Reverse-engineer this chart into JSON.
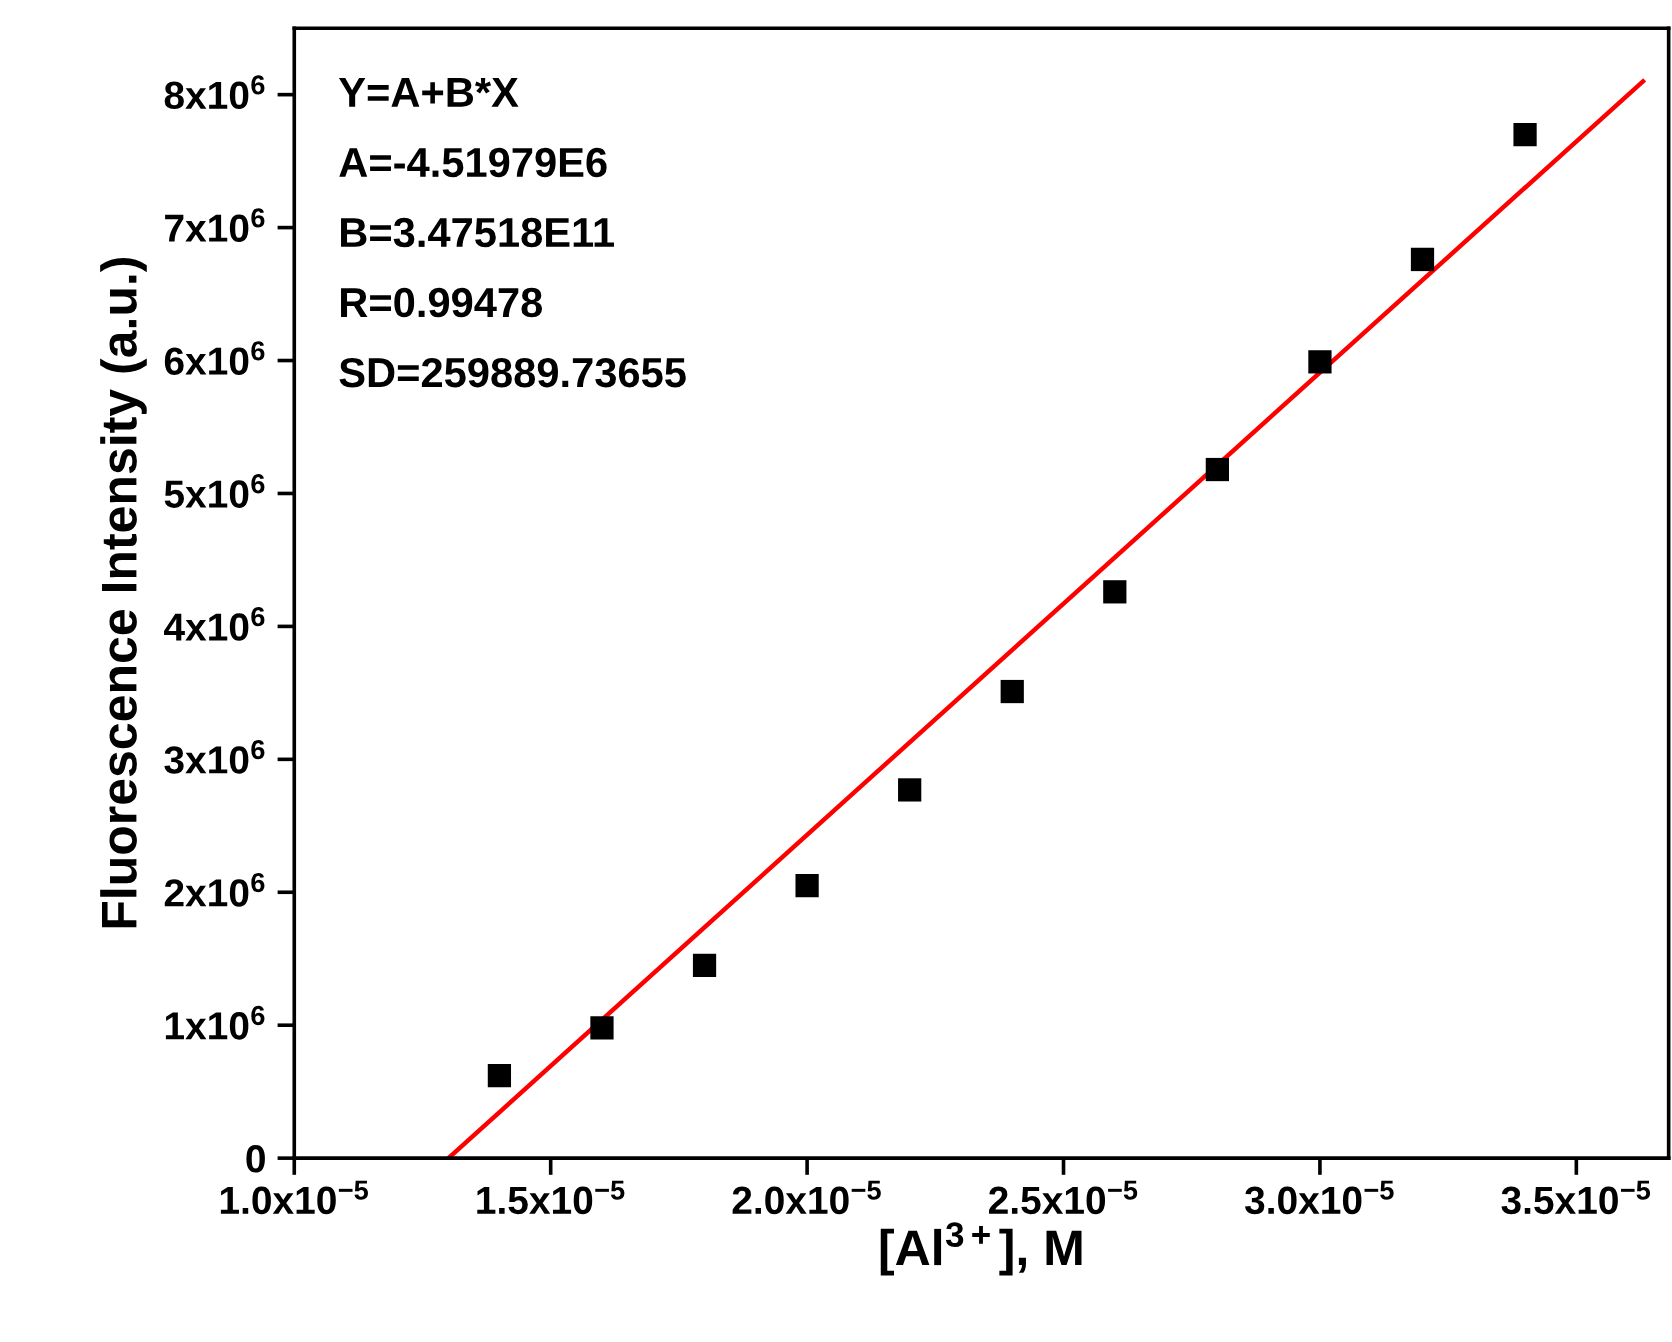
{
  "chart_data": {
    "type": "scatter",
    "xlabel": "[Al$^{3+}$], M",
    "ylabel": "Fluorescence Intensity (a.u.)",
    "x": [
      1.4e-05,
      1.6e-05,
      1.8e-05,
      2e-05,
      2.2e-05,
      2.4e-05,
      2.6e-05,
      2.8e-05,
      3e-05,
      3.2e-05,
      3.4e-05
    ],
    "series": [
      {
        "color": "#000000",
        "marker": "square",
        "values": [
          620000.0,
          980000.0,
          1450000.0,
          2050000.0,
          2770000.0,
          3510000.0,
          4260000.0,
          5180000.0,
          5990000.0,
          6760000.0,
          7700000.0
        ]
      },
      {
        "type": "line",
        "color": "#ff0000",
        "line_style": "solid",
        "marker": "none",
        "x": [
          1.3006e-05,
          3.63e-05
        ],
        "values": [
          0,
          8100000.0
        ]
      }
    ],
    "xlim": [
      1e-05,
      3.68e-05
    ],
    "ylim": [
      0,
      8500000.0
    ],
    "xticks": [
      {
        "value": 1e-05,
        "label": "1.0x10$^{−5}$"
      },
      {
        "value": 1.5e-05,
        "label": "1.5x10$^{−5}$"
      },
      {
        "value": 2e-05,
        "label": "2.0x10$^{−5}$"
      },
      {
        "value": 2.5e-05,
        "label": "2.5x10$^{−5}$"
      },
      {
        "value": 3e-05,
        "label": "3.0x10$^{−5}$"
      },
      {
        "value": 3.5e-05,
        "label": "3.5x10$^{−5}$"
      }
    ],
    "yticks": [
      0,
      {
        "value": 1000000.0,
        "label": "1x10$^{6}$"
      },
      {
        "value": 2000000.0,
        "label": "2x10$^{6}$"
      },
      {
        "value": 3000000.0,
        "label": "3x10$^{6}$"
      },
      {
        "value": 4000000.0,
        "label": "4x10$^{6}$"
      },
      {
        "value": 5000000.0,
        "label": "5x10$^{6}$"
      },
      {
        "value": 6000000.0,
        "label": "6x10$^{6}$"
      },
      {
        "value": 7000000.0,
        "label": "7x10$^{6}$"
      },
      {
        "value": 8000000.0,
        "label": "8x10$^{6}$"
      }
    ],
    "annotations": [
      "Y=A+B*X",
      "A=-4.51979E6",
      "B=3.47518E11",
      "R=0.99478",
      "SD=259889.73655"
    ],
    "grid": false,
    "legend": false
  }
}
